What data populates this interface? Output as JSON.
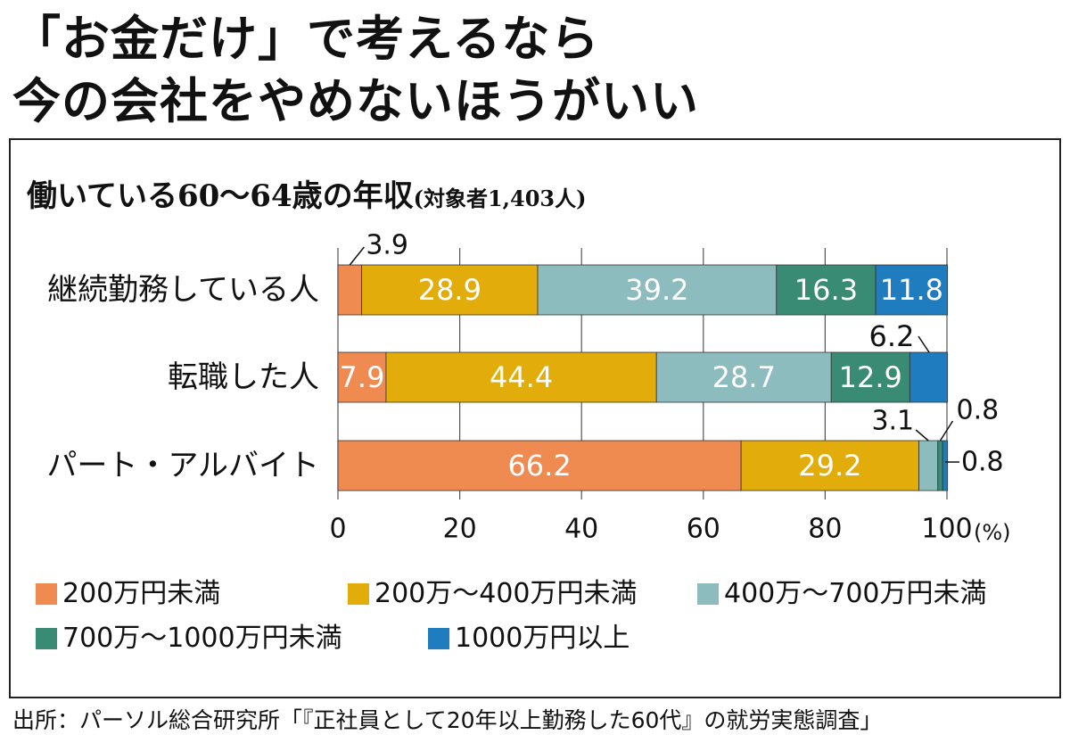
{
  "headline": {
    "line1": "「お金だけ」で考えるなら",
    "line2": "今の会社をやめないほうがいい"
  },
  "chart_title": "働いている60〜64歳の年収",
  "chart_note": "(対象者1,403人)",
  "source": "出所：パーソル総合研究所「『正社員として20年以上勤務した60代』の就労実態調査」",
  "chart_data": {
    "type": "bar",
    "orientation": "horizontal",
    "stacked": true,
    "categories": [
      "継続勤務している人",
      "転職した人",
      "パート・アルバイト"
    ],
    "series": [
      {
        "name": "200万円未満",
        "color": "#ef8a50",
        "values": [
          3.9,
          7.9,
          66.2
        ]
      },
      {
        "name": "200万〜400万円未満",
        "color": "#e2ad0a",
        "values": [
          28.9,
          44.4,
          29.2
        ]
      },
      {
        "name": "400万〜700万円未満",
        "color": "#8dbcbf",
        "values": [
          39.2,
          28.7,
          3.1
        ]
      },
      {
        "name": "700万〜1000万円未満",
        "color": "#3a8b73",
        "values": [
          16.3,
          12.9,
          0.8
        ]
      },
      {
        "name": "1000万円以上",
        "color": "#1f7cbf",
        "values": [
          11.8,
          6.2,
          0.8
        ]
      }
    ],
    "x_ticks": [
      "0",
      "20",
      "40",
      "60",
      "80",
      "100"
    ],
    "x_unit": "(%)",
    "xlim": [
      0,
      100
    ],
    "grid": true,
    "legend_position": "bottom"
  }
}
